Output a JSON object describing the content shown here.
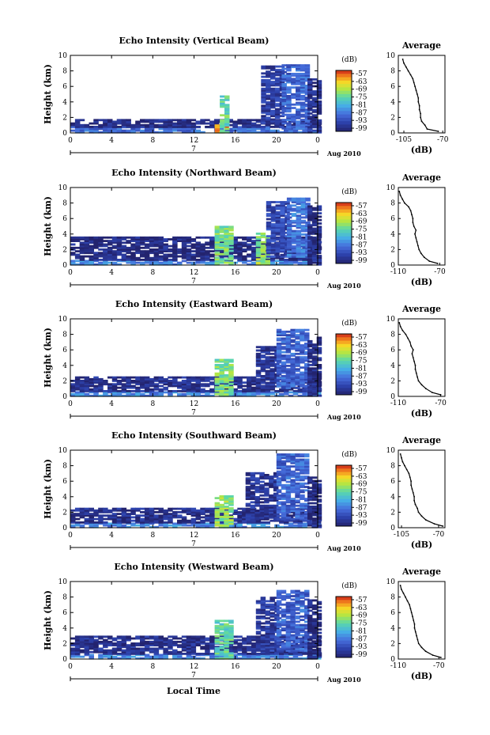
{
  "figure": {
    "time_unit_suffix": "7",
    "date_label": "Aug 2010",
    "xlabel": "Local Time",
    "ylabel": "Height (km)",
    "colorbar_unit": "(dB)",
    "colorbar_ticks": [
      "-57",
      "-63",
      "-69",
      "-75",
      "-81",
      "-87",
      "-93",
      "-99"
    ],
    "profile_title": "Average",
    "profile_xlabel": "(dB)"
  },
  "chart_data": [
    {
      "type": "heatmap",
      "title": "Echo Intensity (Vertical Beam)",
      "xlabel": "Local Time",
      "ylabel": "Height (km)",
      "x_ticks": [
        "0",
        "4",
        "8",
        "12",
        "16",
        "20",
        "0"
      ],
      "xlim": [
        0,
        24
      ],
      "y_ticks": [
        "0",
        "2",
        "4",
        "6",
        "8",
        "10"
      ],
      "ylim": [
        0,
        10
      ],
      "colorbar": {
        "label": "(dB)",
        "ticks": [
          -57,
          -63,
          -69,
          -75,
          -81,
          -87,
          -93,
          -99
        ],
        "range": [
          -99,
          -54
        ]
      },
      "blobs": [
        {
          "t": [
            0,
            24
          ],
          "h": [
            0,
            0.7
          ],
          "dB": -87
        },
        {
          "t": [
            0,
            24
          ],
          "h": [
            0.7,
            1.7
          ],
          "dB": -97
        },
        {
          "t": [
            14,
            15
          ],
          "h": [
            0,
            1
          ],
          "dB": -60
        },
        {
          "t": [
            14.5,
            15.2
          ],
          "h": [
            0,
            4.8
          ],
          "dB": -74
        },
        {
          "t": [
            18.5,
            20.5
          ],
          "h": [
            1,
            8.6
          ],
          "dB": -94
        },
        {
          "t": [
            20.5,
            23
          ],
          "h": [
            0.5,
            8.8
          ],
          "dB": -88
        },
        {
          "t": [
            23,
            24
          ],
          "h": [
            0,
            7
          ],
          "dB": -96
        }
      ],
      "average_profile": {
        "title": "Average",
        "xlabel": "(dB)",
        "x_ticks": [
          "-105",
          "-70"
        ],
        "xlim": [
          -110,
          -68
        ],
        "y_ticks": [
          "0",
          "2",
          "4",
          "6",
          "8",
          "10"
        ],
        "ylim": [
          0,
          10
        ],
        "height": [
          0.2,
          0.5,
          1.0,
          1.5,
          2.0,
          2.5,
          3.0,
          3.5,
          4.0,
          4.5,
          5.0,
          5.5,
          6.0,
          6.5,
          7.0,
          7.5,
          8.0,
          8.5,
          9.0,
          9.5
        ],
        "value": [
          -74,
          -84,
          -86,
          -89,
          -90,
          -90,
          -91,
          -91,
          -92,
          -92,
          -93,
          -94,
          -95,
          -96,
          -97,
          -99,
          -101,
          -103,
          -105,
          -106
        ]
      }
    },
    {
      "type": "heatmap",
      "title": "Echo Intensity (Northward Beam)",
      "xlabel": "Local Time",
      "ylabel": "Height (km)",
      "x_ticks": [
        "0",
        "4",
        "8",
        "12",
        "16",
        "20",
        "0"
      ],
      "xlim": [
        0,
        24
      ],
      "y_ticks": [
        "0",
        "2",
        "4",
        "6",
        "8",
        "10"
      ],
      "ylim": [
        0,
        10
      ],
      "colorbar": {
        "label": "(dB)",
        "ticks": [
          -57,
          -63,
          -69,
          -75,
          -81,
          -87,
          -93,
          -99
        ],
        "range": [
          -99,
          -54
        ]
      },
      "blobs": [
        {
          "t": [
            0,
            24
          ],
          "h": [
            0,
            0.6
          ],
          "dB": -84
        },
        {
          "t": [
            0,
            24
          ],
          "h": [
            0.6,
            3.5
          ],
          "dB": -97
        },
        {
          "t": [
            14,
            15.5
          ],
          "h": [
            0,
            5
          ],
          "dB": -72
        },
        {
          "t": [
            18,
            19
          ],
          "h": [
            0,
            4
          ],
          "dB": -70
        },
        {
          "t": [
            19,
            21
          ],
          "h": [
            1,
            8.2
          ],
          "dB": -92
        },
        {
          "t": [
            21,
            23
          ],
          "h": [
            1,
            8.5
          ],
          "dB": -86
        },
        {
          "t": [
            23,
            24
          ],
          "h": [
            0,
            7.5
          ],
          "dB": -97
        }
      ],
      "average_profile": {
        "title": "Average",
        "xlabel": "(dB)",
        "x_ticks": [
          "-110",
          "-70"
        ],
        "xlim": [
          -110,
          -65
        ],
        "y_ticks": [
          "0",
          "2",
          "4",
          "6",
          "8",
          "10"
        ],
        "ylim": [
          0,
          10
        ],
        "height": [
          0.2,
          0.5,
          1.0,
          1.5,
          2.0,
          2.5,
          3.0,
          3.5,
          4.0,
          4.5,
          5.0,
          5.5,
          6.0,
          6.5,
          7.0,
          7.5,
          8.0,
          8.5,
          9.0,
          9.5
        ],
        "value": [
          -72,
          -80,
          -85,
          -88,
          -90,
          -91,
          -92,
          -93,
          -94,
          -93,
          -95,
          -96,
          -96,
          -97,
          -98,
          -100,
          -104,
          -106,
          -108,
          -109
        ]
      }
    },
    {
      "type": "heatmap",
      "title": "Echo Intensity (Eastward Beam)",
      "xlabel": "Local Time",
      "ylabel": "Height (km)",
      "x_ticks": [
        "0",
        "4",
        "8",
        "12",
        "16",
        "20",
        "0"
      ],
      "xlim": [
        0,
        24
      ],
      "y_ticks": [
        "0",
        "2",
        "4",
        "6",
        "8",
        "10"
      ],
      "ylim": [
        0,
        10
      ],
      "colorbar": {
        "label": "(dB)",
        "ticks": [
          -57,
          -63,
          -69,
          -75,
          -81,
          -87,
          -93,
          -99
        ],
        "range": [
          -99,
          -54
        ]
      },
      "blobs": [
        {
          "t": [
            0,
            24
          ],
          "h": [
            0,
            0.6
          ],
          "dB": -84
        },
        {
          "t": [
            0,
            24
          ],
          "h": [
            0.6,
            2.5
          ],
          "dB": -96
        },
        {
          "t": [
            14,
            15.5
          ],
          "h": [
            0,
            4.8
          ],
          "dB": -72
        },
        {
          "t": [
            18,
            20
          ],
          "h": [
            1,
            6.5
          ],
          "dB": -95
        },
        {
          "t": [
            20,
            23
          ],
          "h": [
            1,
            8.5
          ],
          "dB": -88
        },
        {
          "t": [
            23,
            24
          ],
          "h": [
            0,
            7.5
          ],
          "dB": -97
        }
      ],
      "average_profile": {
        "title": "Average",
        "xlabel": "(dB)",
        "x_ticks": [
          "-110",
          "-70"
        ],
        "xlim": [
          -110,
          -66
        ],
        "y_ticks": [
          "0",
          "2",
          "4",
          "6",
          "8",
          "10"
        ],
        "ylim": [
          0,
          10
        ],
        "height": [
          0.2,
          0.5,
          1.0,
          1.5,
          2.0,
          2.5,
          3.0,
          3.5,
          4.0,
          4.5,
          5.0,
          5.5,
          6.0,
          6.5,
          7.0,
          7.5,
          8.0,
          8.5,
          9.0,
          9.5
        ],
        "value": [
          -70,
          -78,
          -84,
          -88,
          -91,
          -92,
          -93,
          -94,
          -94,
          -95,
          -96,
          -97,
          -96,
          -98,
          -99,
          -101,
          -103,
          -106,
          -108,
          -109
        ]
      }
    },
    {
      "type": "heatmap",
      "title": "Echo Intensity (Southward Beam)",
      "xlabel": "Local Time",
      "ylabel": "Height (km)",
      "x_ticks": [
        "0",
        "4",
        "8",
        "12",
        "16",
        "20",
        "0"
      ],
      "xlim": [
        0,
        24
      ],
      "y_ticks": [
        "0",
        "2",
        "4",
        "6",
        "8",
        "10"
      ],
      "ylim": [
        0,
        10
      ],
      "colorbar": {
        "label": "(dB)",
        "ticks": [
          -57,
          -63,
          -69,
          -75,
          -81,
          -87,
          -93,
          -99
        ],
        "range": [
          -99,
          -54
        ]
      },
      "blobs": [
        {
          "t": [
            0,
            24
          ],
          "h": [
            0,
            0.6
          ],
          "dB": -84
        },
        {
          "t": [
            0,
            24
          ],
          "h": [
            0.6,
            2.5
          ],
          "dB": -96
        },
        {
          "t": [
            14,
            15.5
          ],
          "h": [
            0,
            4
          ],
          "dB": -70
        },
        {
          "t": [
            17,
            20
          ],
          "h": [
            1,
            7
          ],
          "dB": -95
        },
        {
          "t": [
            20,
            23
          ],
          "h": [
            1,
            9.5
          ],
          "dB": -88
        },
        {
          "t": [
            23,
            24
          ],
          "h": [
            0,
            6.5
          ],
          "dB": -97
        }
      ],
      "average_profile": {
        "title": "Average",
        "xlabel": "(dB)",
        "x_ticks": [
          "-105",
          "-70"
        ],
        "xlim": [
          -108,
          -64
        ],
        "y_ticks": [
          "0",
          "2",
          "4",
          "6",
          "8",
          "10"
        ],
        "ylim": [
          0,
          10
        ],
        "height": [
          0.2,
          0.5,
          1.0,
          1.5,
          2.0,
          2.5,
          3.0,
          3.5,
          4.0,
          4.5,
          5.0,
          5.5,
          6.0,
          6.5,
          7.0,
          7.5,
          8.0,
          8.5,
          9.0,
          9.5
        ],
        "value": [
          -66,
          -74,
          -82,
          -86,
          -89,
          -90,
          -92,
          -93,
          -93,
          -94,
          -95,
          -96,
          -96,
          -97,
          -98,
          -100,
          -102,
          -104,
          -105,
          -106
        ]
      }
    },
    {
      "type": "heatmap",
      "title": "Echo Intensity (Westward Beam)",
      "xlabel": "Local Time",
      "ylabel": "Height (km)",
      "x_ticks": [
        "0",
        "4",
        "8",
        "12",
        "16",
        "20",
        "0"
      ],
      "xlim": [
        0,
        24
      ],
      "y_ticks": [
        "0",
        "2",
        "4",
        "6",
        "8",
        "10"
      ],
      "ylim": [
        0,
        10
      ],
      "colorbar": {
        "label": "(dB)",
        "ticks": [
          -57,
          -63,
          -69,
          -75,
          -81,
          -87,
          -93,
          -99
        ],
        "range": [
          -99,
          -54
        ]
      },
      "blobs": [
        {
          "t": [
            0,
            24
          ],
          "h": [
            0,
            0.6
          ],
          "dB": -84
        },
        {
          "t": [
            0,
            24
          ],
          "h": [
            0.6,
            3
          ],
          "dB": -96
        },
        {
          "t": [
            14,
            15.5
          ],
          "h": [
            0,
            5
          ],
          "dB": -74
        },
        {
          "t": [
            18,
            20
          ],
          "h": [
            1,
            8
          ],
          "dB": -94
        },
        {
          "t": [
            20,
            23
          ],
          "h": [
            1,
            8.8
          ],
          "dB": -88
        },
        {
          "t": [
            23,
            24
          ],
          "h": [
            0,
            7.5
          ],
          "dB": -97
        }
      ],
      "average_profile": {
        "title": "Average",
        "xlabel": "(dB)",
        "x_ticks": [
          "-110",
          "-70"
        ],
        "xlim": [
          -110,
          -64
        ],
        "y_ticks": [
          "0",
          "2",
          "4",
          "6",
          "8",
          "10"
        ],
        "ylim": [
          0,
          10
        ],
        "height": [
          0.2,
          0.5,
          1.0,
          1.5,
          2.0,
          2.5,
          3.0,
          3.5,
          4.0,
          4.5,
          5.0,
          5.5,
          6.0,
          6.5,
          7.0,
          7.5,
          8.0,
          8.5,
          9.0,
          9.5
        ],
        "value": [
          -68,
          -76,
          -83,
          -87,
          -90,
          -91,
          -92,
          -93,
          -94,
          -94,
          -95,
          -96,
          -97,
          -98,
          -99,
          -101,
          -103,
          -105,
          -107,
          -108
        ]
      }
    }
  ]
}
